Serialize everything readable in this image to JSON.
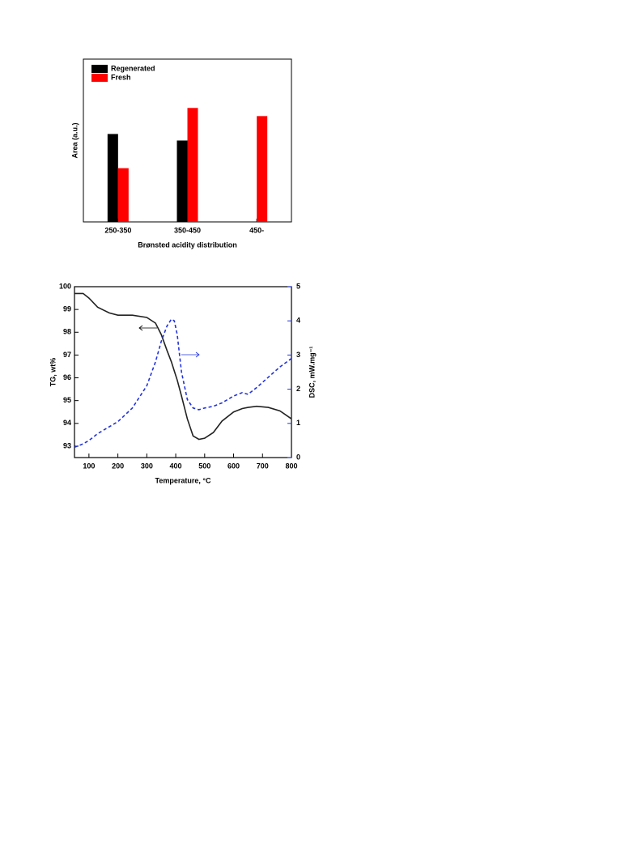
{
  "chart_data": [
    {
      "type": "bar",
      "xlabel": "Brønsted acidity distribution",
      "ylabel": "Area (a.u.)",
      "categories": [
        "250-350",
        "350-450",
        "450-"
      ],
      "series": [
        {
          "name": "Regenerated",
          "color": "#000000",
          "values": [
            54,
            50,
            null
          ]
        },
        {
          "name": "Fresh",
          "color": "#ff0000",
          "values": [
            33,
            70,
            65
          ]
        }
      ],
      "ylim": [
        0,
        100
      ],
      "legend": "top-left"
    },
    {
      "type": "line",
      "xlabel": "Temperature, °C",
      "ylabel": "TG, wt%",
      "y2label": "DSC, mW.mg⁻¹",
      "x": [
        50,
        80,
        100,
        130,
        170,
        200,
        250,
        300,
        330,
        350,
        370,
        385,
        395,
        405,
        420,
        440,
        460,
        480,
        500,
        530,
        560,
        600,
        630,
        650,
        680,
        720,
        760,
        800
      ],
      "series": [
        {
          "color": "#222222",
          "line_style": "solid",
          "axis": "y",
          "values": [
            99.7,
            99.7,
            99.5,
            99.1,
            98.85,
            98.75,
            98.75,
            98.65,
            98.4,
            97.9,
            97.2,
            96.7,
            96.3,
            95.9,
            95.2,
            94.2,
            93.45,
            93.3,
            93.35,
            93.6,
            94.1,
            94.5,
            94.65,
            94.7,
            94.75,
            94.7,
            94.55,
            94.2
          ]
        },
        {
          "color": "#2233dd",
          "line_style": "dashed",
          "axis": "y2",
          "values": [
            0.3,
            0.4,
            0.5,
            0.7,
            0.9,
            1.05,
            1.45,
            2.1,
            2.8,
            3.4,
            3.85,
            4.05,
            4.0,
            3.6,
            2.5,
            1.7,
            1.45,
            1.4,
            1.45,
            1.5,
            1.6,
            1.8,
            1.9,
            1.85,
            2.05,
            2.35,
            2.65,
            2.9
          ]
        }
      ],
      "xlim": [
        50,
        800
      ],
      "xticks": [
        100,
        200,
        300,
        400,
        500,
        600,
        700,
        800
      ],
      "ylim": [
        92.5,
        100
      ],
      "yticks": [
        93,
        94,
        95,
        96,
        97,
        98,
        99,
        100
      ],
      "y2lim": [
        0,
        5
      ],
      "y2ticks": [
        0,
        1,
        2,
        3,
        4,
        5
      ]
    }
  ]
}
